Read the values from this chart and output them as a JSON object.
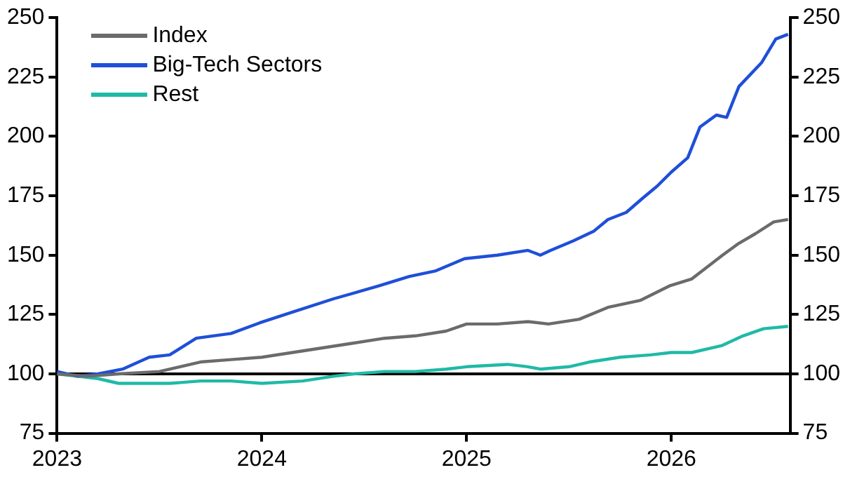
{
  "chart_data": {
    "type": "line",
    "xlim": [
      2023,
      2026.58
    ],
    "xticks": [
      2023,
      2024,
      2025,
      2026
    ],
    "ylim": [
      75,
      250
    ],
    "yticks": [
      75,
      100,
      125,
      150,
      175,
      200,
      225,
      250
    ],
    "y2lim": [
      75,
      250
    ],
    "y2ticks": [
      75,
      100,
      125,
      150,
      175,
      200,
      225,
      250
    ],
    "grid": false,
    "legend": "top left",
    "marker": "none",
    "line_style": "solid",
    "ref_lines": [
      {
        "axis": "y",
        "value": 100,
        "color": "#000000"
      }
    ],
    "series": [
      {
        "name": "Index",
        "color": "#6b6b6b",
        "x": [
          2023,
          2023.15,
          2023.3,
          2023.5,
          2023.7,
          2023.85,
          2024,
          2024.15,
          2024.3,
          2024.45,
          2024.6,
          2024.75,
          2024.9,
          2025,
          2025.15,
          2025.3,
          2025.4,
          2025.55,
          2025.69,
          2025.85,
          2025.99,
          2026.1,
          2026.25,
          2026.33,
          2026.41,
          2026.5,
          2026.57
        ],
        "values": [
          100,
          99,
          100,
          101,
          105,
          106,
          107,
          109,
          111,
          113,
          115,
          116,
          118,
          121,
          121,
          122,
          121,
          123,
          128,
          131,
          137,
          140,
          150,
          155,
          159,
          164,
          165
        ]
      },
      {
        "name": "Big-Tech Sectors",
        "color": "#1f4fd8",
        "x": [
          2023,
          2023.1,
          2023.2,
          2023.32,
          2023.45,
          2023.55,
          2023.68,
          2023.85,
          2023.99,
          2024.15,
          2024.35,
          2024.57,
          2024.72,
          2024.85,
          2024.99,
          2025.15,
          2025.3,
          2025.36,
          2025.41,
          2025.52,
          2025.62,
          2025.69,
          2025.78,
          2025.86,
          2025.93,
          2026,
          2026.08,
          2026.14,
          2026.22,
          2026.27,
          2026.33,
          2026.44,
          2026.51,
          2026.57
        ],
        "values": [
          101,
          99,
          100,
          102,
          107,
          108,
          115,
          117,
          121.5,
          126,
          131.6,
          137,
          141,
          143.4,
          148.5,
          150,
          152,
          150,
          152,
          156,
          160,
          165,
          168,
          174,
          179,
          185,
          191,
          204,
          209,
          208,
          221,
          231,
          241,
          243
        ]
      },
      {
        "name": "Rest",
        "color": "#1fbaa6",
        "x": [
          2023,
          2023.1,
          2023.2,
          2023.3,
          2023.45,
          2023.55,
          2023.7,
          2023.85,
          2024,
          2024.2,
          2024.35,
          2024.45,
          2024.6,
          2024.75,
          2024.9,
          2025,
          2025.2,
          2025.3,
          2025.36,
          2025.5,
          2025.6,
          2025.75,
          2025.9,
          2026,
          2026.1,
          2026.25,
          2026.35,
          2026.45,
          2026.57
        ],
        "values": [
          100,
          99,
          98,
          96,
          96,
          96,
          97,
          97,
          96,
          97,
          99,
          100,
          101,
          101,
          102,
          103,
          104,
          103,
          102,
          103,
          105,
          107,
          108,
          109,
          109,
          112,
          116,
          119,
          120
        ]
      }
    ]
  }
}
